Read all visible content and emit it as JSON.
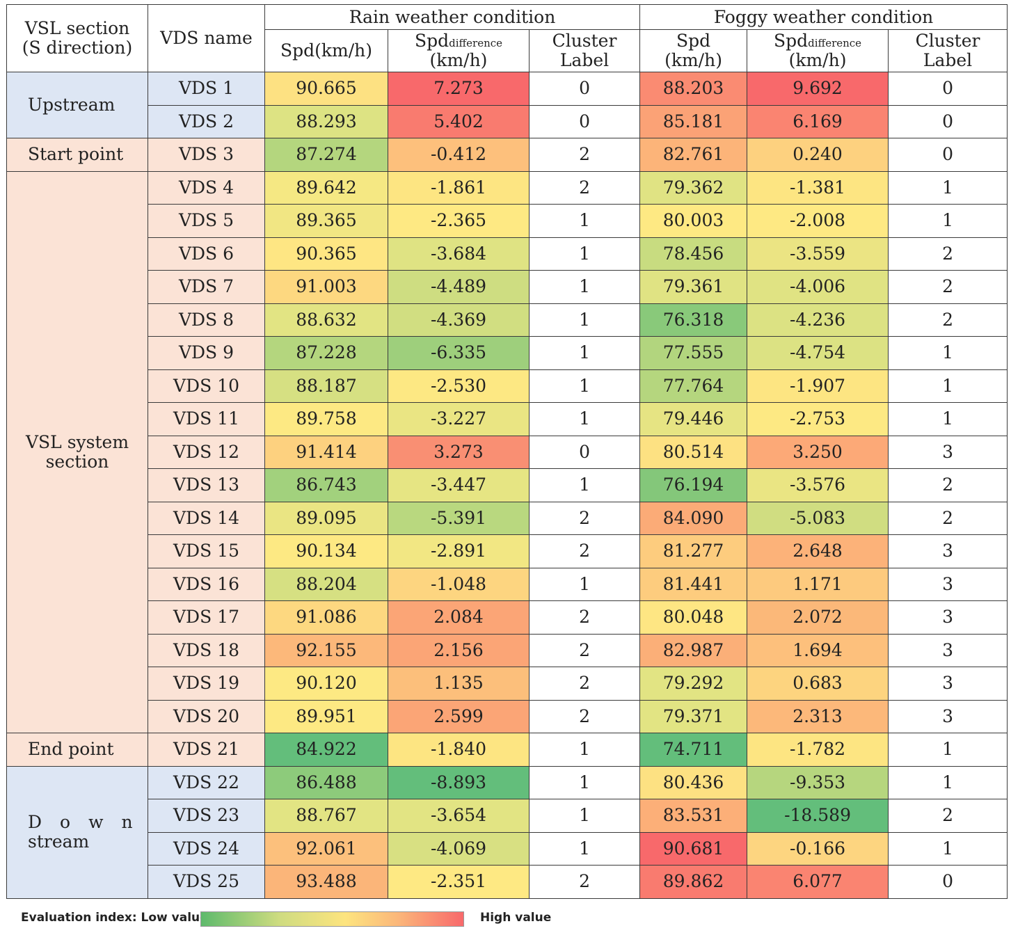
{
  "headers": {
    "section": [
      "VSL section",
      "(S direction)"
    ],
    "vds": "VDS name",
    "rain_group": "Rain weather condition",
    "fog_group": "Foggy weather condition",
    "rain_spd": "Spd(km/h)",
    "spd_main": "Spd",
    "spd_sub": "difference",
    "kmh": "(km/h)",
    "cluster_line1": "Cluster",
    "cluster_line2": "Label",
    "fog_spd_line1": "Spd",
    "fog_spd_line2": "(km/h)"
  },
  "sections": {
    "upstream": "Upstream",
    "start": "Start point",
    "vsl_line1": "VSL system",
    "vsl_line2": "section",
    "end": "End point",
    "down_line1": "Down",
    "down_line2": "stream"
  },
  "rows": [
    {
      "vds": "VDS 1",
      "r_spd": "90.665",
      "r_diff": "7.273",
      "r_cl": "0",
      "f_spd": "88.203",
      "f_diff": "9.692",
      "f_cl": "0",
      "c": [
        "#fde182",
        "#f8696b",
        "#fa8b72",
        "#f8696b"
      ]
    },
    {
      "vds": "VDS 2",
      "r_spd": "88.293",
      "r_diff": "5.402",
      "r_cl": "0",
      "f_spd": "85.181",
      "f_diff": "6.169",
      "f_cl": "0",
      "c": [
        "#dde383",
        "#f97b6f",
        "#fba276",
        "#fa8471"
      ]
    },
    {
      "vds": "VDS 3",
      "r_spd": "87.274",
      "r_diff": "-0.412",
      "r_cl": "2",
      "f_spd": "82.761",
      "f_diff": "0.240",
      "f_cl": "0",
      "c": [
        "#b4d67e",
        "#fdc07c",
        "#fcb479",
        "#fdd17f"
      ]
    },
    {
      "vds": "VDS 4",
      "r_spd": "89.642",
      "r_diff": "-1.861",
      "r_cl": "2",
      "f_spd": "79.362",
      "f_diff": "-1.381",
      "f_cl": "1",
      "c": [
        "#f5e883",
        "#fde582",
        "#e0e383",
        "#fde582"
      ]
    },
    {
      "vds": "VDS 5",
      "r_spd": "89.365",
      "r_diff": "-2.365",
      "r_cl": "1",
      "f_spd": "80.003",
      "f_diff": "-2.008",
      "f_cl": "1",
      "c": [
        "#f1e683",
        "#fee983",
        "#fee983",
        "#fee983"
      ]
    },
    {
      "vds": "VDS 6",
      "r_spd": "90.365",
      "r_diff": "-3.684",
      "r_cl": "1",
      "f_spd": "78.456",
      "f_diff": "-3.559",
      "f_cl": "2",
      "c": [
        "#fee683",
        "#dfe383",
        "#c8dc80",
        "#ebe483"
      ]
    },
    {
      "vds": "VDS 7",
      "r_spd": "91.003",
      "r_diff": "-4.489",
      "r_cl": "1",
      "f_spd": "79.361",
      "f_diff": "-4.006",
      "f_cl": "2",
      "c": [
        "#fdd880",
        "#cedd81",
        "#e0e383",
        "#e0e383"
      ]
    },
    {
      "vds": "VDS 8",
      "r_spd": "88.632",
      "r_diff": "-4.369",
      "r_cl": "1",
      "f_spd": "76.318",
      "f_diff": "-4.236",
      "f_cl": "2",
      "c": [
        "#e2e483",
        "#d1de81",
        "#89c97a",
        "#dce283"
      ]
    },
    {
      "vds": "VDS 9",
      "r_spd": "87.228",
      "r_diff": "-6.335",
      "r_cl": "1",
      "f_spd": "77.555",
      "f_diff": "-4.754",
      "f_cl": "1",
      "c": [
        "#b4d67e",
        "#9ecf7c",
        "#b2d57e",
        "#dce283"
      ]
    },
    {
      "vds": "VDS 10",
      "r_spd": "88.187",
      "r_diff": "-2.530",
      "r_cl": "1",
      "f_spd": "77.764",
      "f_diff": "-1.907",
      "f_cl": "1",
      "c": [
        "#d6e082",
        "#fde883",
        "#b5d67e",
        "#fde582"
      ]
    },
    {
      "vds": "VDS 11",
      "r_spd": "89.758",
      "r_diff": "-3.227",
      "r_cl": "1",
      "f_spd": "79.446",
      "f_diff": "-2.753",
      "f_cl": "1",
      "c": [
        "#fde983",
        "#eae583",
        "#e6e483",
        "#fde983"
      ]
    },
    {
      "vds": "VDS 12",
      "r_spd": "91.414",
      "r_diff": "3.273",
      "r_cl": "0",
      "f_spd": "80.514",
      "f_diff": "3.250",
      "f_cl": "3",
      "c": [
        "#fdd17f",
        "#f98f73",
        "#fde182",
        "#fca977"
      ]
    },
    {
      "vds": "VDS 13",
      "r_spd": "86.743",
      "r_diff": "-3.447",
      "r_cl": "1",
      "f_spd": "76.194",
      "f_diff": "-3.576",
      "f_cl": "2",
      "c": [
        "#a2d17d",
        "#e6e583",
        "#84c77a",
        "#eae583"
      ]
    },
    {
      "vds": "VDS 14",
      "r_spd": "89.095",
      "r_diff": "-5.391",
      "r_cl": "2",
      "f_spd": "84.090",
      "f_diff": "-5.083",
      "f_cl": "2",
      "c": [
        "#eae583",
        "#b9d87f",
        "#fbab77",
        "#d0dd81"
      ]
    },
    {
      "vds": "VDS 15",
      "r_spd": "90.134",
      "r_diff": "-2.891",
      "r_cl": "2",
      "f_spd": "81.277",
      "f_diff": "2.648",
      "f_cl": "3",
      "c": [
        "#fde983",
        "#f2e783",
        "#fdcc7e",
        "#fcb279"
      ]
    },
    {
      "vds": "VDS 16",
      "r_spd": "88.204",
      "r_diff": "-1.048",
      "r_cl": "1",
      "f_spd": "81.441",
      "f_diff": "1.171",
      "f_cl": "3",
      "c": [
        "#d6e082",
        "#fdd580",
        "#fdcc7e",
        "#fdca7e"
      ]
    },
    {
      "vds": "VDS 17",
      "r_spd": "91.086",
      "r_diff": "2.084",
      "r_cl": "2",
      "f_spd": "80.048",
      "f_diff": "2.072",
      "f_cl": "3",
      "c": [
        "#fdd880",
        "#fba576",
        "#fee683",
        "#fbb879"
      ]
    },
    {
      "vds": "VDS 18",
      "r_spd": "92.155",
      "r_diff": "2.156",
      "r_cl": "2",
      "f_spd": "82.987",
      "f_diff": "1.694",
      "f_cl": "3",
      "c": [
        "#fcb87a",
        "#fba576",
        "#fbaf78",
        "#fdc07c"
      ]
    },
    {
      "vds": "VDS 19",
      "r_spd": "90.120",
      "r_diff": "1.135",
      "r_cl": "2",
      "f_spd": "79.292",
      "f_diff": "0.683",
      "f_cl": "3",
      "c": [
        "#fde983",
        "#fcbf7b",
        "#e2e483",
        "#fdd47f"
      ]
    },
    {
      "vds": "VDS 20",
      "r_spd": "89.951",
      "r_diff": "2.599",
      "r_cl": "2",
      "f_spd": "79.371",
      "f_diff": "2.313",
      "f_cl": "3",
      "c": [
        "#fde983",
        "#fba576",
        "#e2e483",
        "#fcb87a"
      ]
    },
    {
      "vds": "VDS 21",
      "r_spd": "84.922",
      "r_diff": "-1.840",
      "r_cl": "1",
      "f_spd": "74.711",
      "f_diff": "-1.782",
      "f_cl": "1",
      "c": [
        "#63be7b",
        "#fde582",
        "#63be7b",
        "#fde582"
      ]
    },
    {
      "vds": "VDS 22",
      "r_spd": "86.488",
      "r_diff": "-8.893",
      "r_cl": "1",
      "f_spd": "80.436",
      "f_diff": "-9.353",
      "f_cl": "1",
      "c": [
        "#8dcb7b",
        "#63be7b",
        "#fde182",
        "#b6d67e"
      ]
    },
    {
      "vds": "VDS 23",
      "r_spd": "88.767",
      "r_diff": "-3.654",
      "r_cl": "1",
      "f_spd": "83.531",
      "f_diff": "-18.589",
      "f_cl": "2",
      "c": [
        "#e2e483",
        "#e2e483",
        "#fcaf78",
        "#63be7b"
      ]
    },
    {
      "vds": "VDS 24",
      "r_spd": "92.061",
      "r_diff": "-4.069",
      "r_cl": "1",
      "f_spd": "90.681",
      "f_diff": "-0.166",
      "f_cl": "1",
      "c": [
        "#fcc07c",
        "#d8e082",
        "#f8696b",
        "#fdd580"
      ]
    },
    {
      "vds": "VDS 25",
      "r_spd": "93.488",
      "r_diff": "-2.351",
      "r_cl": "2",
      "f_spd": "89.862",
      "f_diff": "6.077",
      "f_cl": "0",
      "c": [
        "#fbb579",
        "#fee983",
        "#f97b6f",
        "#fa8471"
      ]
    }
  ],
  "legend": {
    "low": "Evaluation index: Low value",
    "high": "High value"
  }
}
